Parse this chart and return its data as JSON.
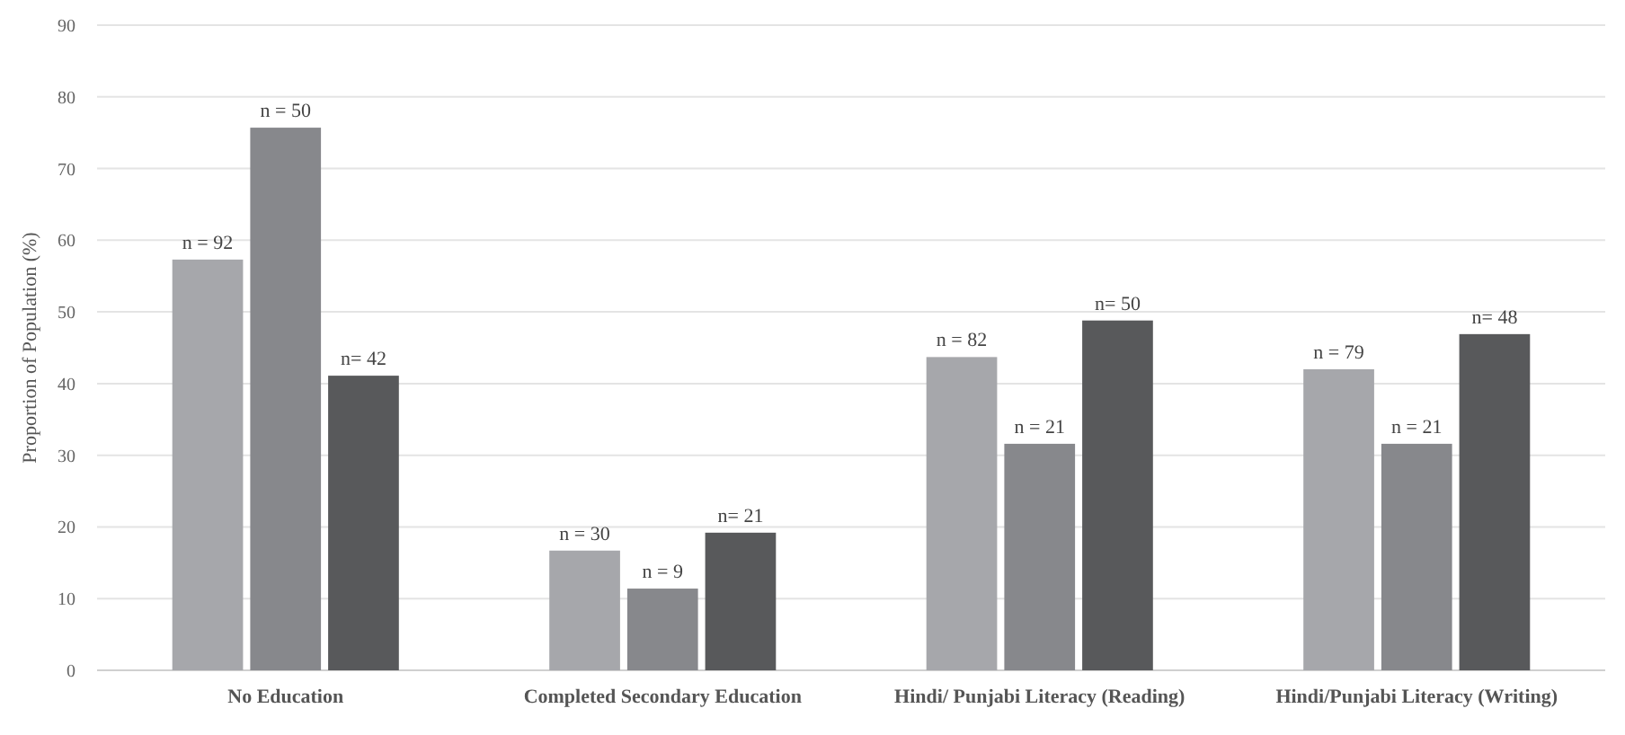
{
  "chart_data": {
    "type": "bar",
    "ylabel": "Proportion of Population (%)",
    "categories": [
      "No Education",
      "Completed Secondary Education",
      "Hindi/ Punjabi Literacy (Reading)",
      "Hindi/Punjabi Literacy (Writing)"
    ],
    "series": [
      {
        "color": "#a6a7ab",
        "values": [
          57.3,
          16.7,
          43.7,
          42.0
        ]
      },
      {
        "color": "#87888c",
        "values": [
          75.7,
          11.4,
          31.6,
          31.6
        ]
      },
      {
        "color": "#58595b",
        "values": [
          41.1,
          19.2,
          48.8,
          46.9
        ]
      }
    ],
    "annotations": [
      "n = 92",
      "n = 50",
      "n= 42",
      "n = 30",
      "n = 9",
      "n= 21",
      "n = 82",
      "n = 21",
      "n= 50",
      "n = 79",
      "n = 21",
      "n= 48"
    ],
    "ylim": [
      0,
      90
    ],
    "yticks": [
      0,
      10,
      20,
      30,
      40,
      50,
      60,
      70,
      80,
      90
    ],
    "grid": "y"
  }
}
